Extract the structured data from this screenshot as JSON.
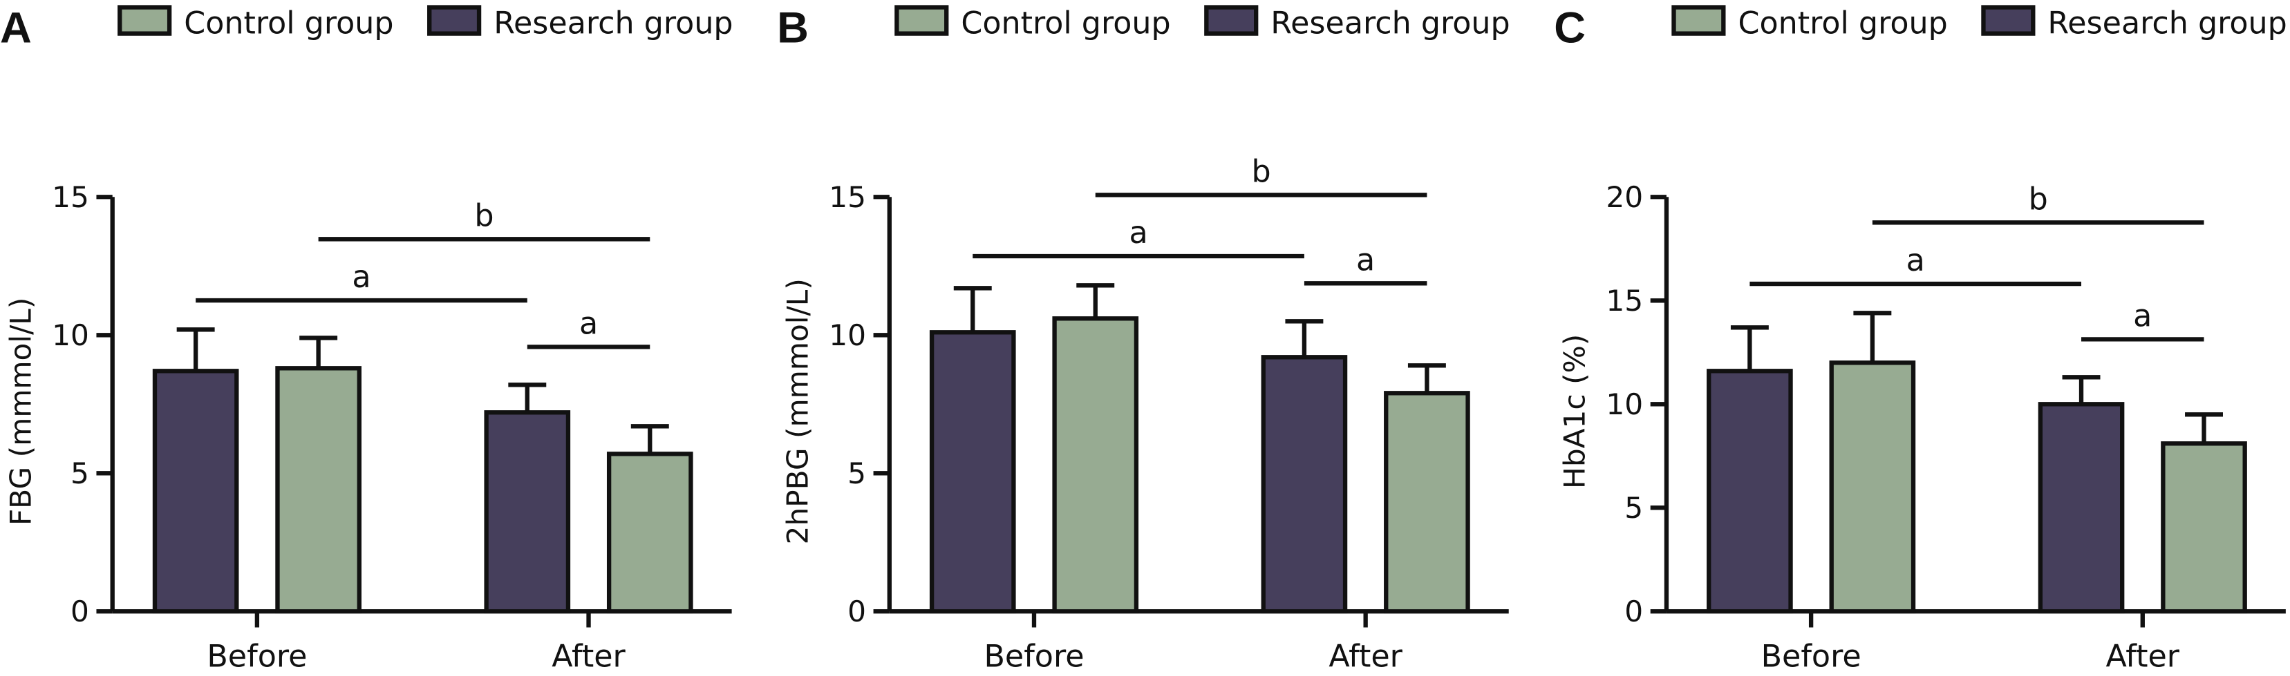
{
  "figure": {
    "colors": {
      "research": "#463f5c",
      "control": "#97ab92",
      "stroke": "#111111"
    }
  },
  "chart_data": [
    {
      "type": "bar",
      "panel": "A",
      "categories": [
        "Before",
        "After"
      ],
      "series": [
        {
          "name": "Research group",
          "values": [
            8.7,
            7.2
          ],
          "errors": [
            1.5,
            1.0
          ]
        },
        {
          "name": "Control group",
          "values": [
            8.8,
            5.7
          ],
          "errors": [
            1.1,
            1.0
          ]
        }
      ],
      "xlabel": "",
      "ylabel": "FBG (mmmol/L)",
      "ylim": [
        0,
        15
      ],
      "yticks": [
        0,
        5,
        10,
        15
      ],
      "legend": [
        "Control group",
        "Research group"
      ],
      "legend_position": "top",
      "annotations": [
        {
          "label": "a",
          "from": "Before/Research",
          "to": "After/Research",
          "tier": 1
        },
        {
          "label": "b",
          "from": "Before/Control",
          "to": "After/Control",
          "tier": 2
        },
        {
          "label": "a",
          "from": "After/Research",
          "to": "After/Control",
          "tier": 0
        }
      ]
    },
    {
      "type": "bar",
      "panel": "B",
      "categories": [
        "Before",
        "After"
      ],
      "series": [
        {
          "name": "Research group",
          "values": [
            10.1,
            9.2
          ],
          "errors": [
            1.6,
            1.3
          ]
        },
        {
          "name": "Control group",
          "values": [
            10.6,
            7.9
          ],
          "errors": [
            1.2,
            1.0
          ]
        }
      ],
      "xlabel": "",
      "ylabel": "2hPBG (mmmol/L)",
      "ylim": [
        0,
        15
      ],
      "yticks": [
        0,
        5,
        10,
        15
      ],
      "legend": [
        "Control group",
        "Research group"
      ],
      "legend_position": "top",
      "annotations": [
        {
          "label": "a",
          "from": "Before/Research",
          "to": "After/Research",
          "tier": 1
        },
        {
          "label": "b",
          "from": "Before/Control",
          "to": "After/Control",
          "tier": 2
        },
        {
          "label": "a",
          "from": "After/Research",
          "to": "After/Control",
          "tier": 0
        }
      ]
    },
    {
      "type": "bar",
      "panel": "C",
      "categories": [
        "Before",
        "After"
      ],
      "series": [
        {
          "name": "Research group",
          "values": [
            11.6,
            10.0
          ],
          "errors": [
            2.1,
            1.3
          ]
        },
        {
          "name": "Control group",
          "values": [
            12.0,
            8.1
          ],
          "errors": [
            2.4,
            1.4
          ]
        }
      ],
      "xlabel": "",
      "ylabel": "HbA1c (%)",
      "ylim": [
        0,
        20
      ],
      "yticks": [
        0,
        5,
        10,
        15,
        20
      ],
      "legend": [
        "Control group",
        "Research group"
      ],
      "legend_position": "top",
      "annotations": [
        {
          "label": "a",
          "from": "Before/Research",
          "to": "After/Research",
          "tier": 1
        },
        {
          "label": "b",
          "from": "Before/Control",
          "to": "After/Control",
          "tier": 2
        },
        {
          "label": "a",
          "from": "After/Research",
          "to": "After/Control",
          "tier": 0
        }
      ]
    }
  ]
}
